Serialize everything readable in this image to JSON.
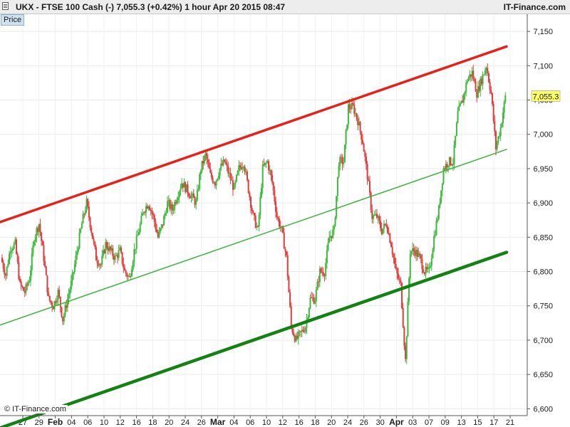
{
  "header": {
    "title": "UKX - FTSE 100 Cash (-)    7,055.3 (+0.42%)    1 hour   Apr 20 2015 08:47",
    "brand": "IT-Finance.com"
  },
  "panel": {
    "price_tab": "Price"
  },
  "copyright": "© IT-Finance.com",
  "chart_data": {
    "type": "candlestick",
    "y_axis": {
      "ticks": [
        "7,150",
        "7,100",
        "7,050",
        "7,000",
        "6,950",
        "6,900",
        "6,850",
        "6,800",
        "6,750",
        "6,700",
        "6,650",
        "6,600"
      ],
      "tick_values": [
        7150,
        7100,
        7050,
        7000,
        6950,
        6900,
        6850,
        6800,
        6750,
        6700,
        6650,
        6600
      ],
      "ylim": [
        6590,
        7175
      ],
      "side": "right"
    },
    "x_axis": {
      "labels": [
        "27",
        "29",
        "Feb",
        "04",
        "06",
        "10",
        "12",
        "16",
        "18",
        "20",
        "24",
        "26",
        "Mar",
        "04",
        "06",
        "10",
        "12",
        "16",
        "18",
        "20",
        "24",
        "26",
        "30",
        "Apr",
        "03",
        "07",
        "09",
        "13",
        "15",
        "17",
        "21"
      ],
      "bold_labels": [
        "Feb",
        "Mar",
        "Apr"
      ]
    },
    "last_price": {
      "value": 7055.3,
      "label": "7,055.3"
    },
    "price_series": [
      6820,
      6795,
      6835,
      6840,
      6780,
      6770,
      6790,
      6850,
      6870,
      6820,
      6760,
      6750,
      6770,
      6730,
      6760,
      6790,
      6830,
      6870,
      6900,
      6860,
      6820,
      6810,
      6840,
      6830,
      6820,
      6830,
      6800,
      6790,
      6830,
      6860,
      6890,
      6900,
      6880,
      6850,
      6870,
      6900,
      6890,
      6910,
      6930,
      6920,
      6910,
      6900,
      6950,
      6970,
      6940,
      6930,
      6950,
      6960,
      6940,
      6920,
      6950,
      6960,
      6920,
      6880,
      6860,
      6950,
      6960,
      6930,
      6880,
      6860,
      6820,
      6720,
      6700,
      6710,
      6720,
      6760,
      6760,
      6800,
      6800,
      6850,
      6860,
      6960,
      6960,
      7040,
      7040,
      7020,
      6990,
      6940,
      6880,
      6880,
      6860,
      6870,
      6840,
      6800,
      6780,
      6670,
      6830,
      6830,
      6820,
      6800,
      6800,
      6850,
      6890,
      6950,
      6960,
      6960,
      7030,
      7050,
      7080,
      7090,
      7060,
      7080,
      7100,
      7060,
      6980,
      7010,
      7055
    ],
    "channels": [
      {
        "name": "",
        "color": "#e8201a",
        "width": 3.5,
        "start": 6872,
        "end": 7128
      },
      {
        "name": "",
        "color": "#3ab53a",
        "width": 1.5,
        "start": 6722,
        "end": 6978
      },
      {
        "name": "",
        "color": "#128212",
        "width": 4.5,
        "start": 6572,
        "end": 6828
      }
    ],
    "colors": {
      "up": "#3cb83c",
      "down": "#e03c3c",
      "last_price_bg": "#ffff66"
    },
    "grid": true
  }
}
